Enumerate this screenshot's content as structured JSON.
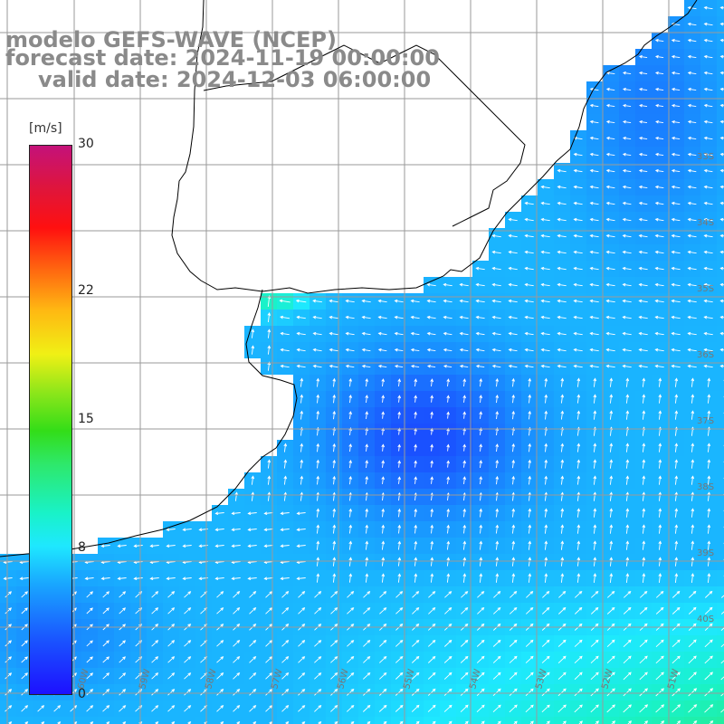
{
  "title": {
    "model": "modelo GEFS-WAVE (NCEP)",
    "forecast": "forecast date: 2024-11-19 00:00:00",
    "valid": "valid date: 2024-12-03 06:00:00"
  },
  "colorbar": {
    "unit": "[m/s]",
    "ticks": [
      {
        "label": "30",
        "value": 30
      },
      {
        "label": "22",
        "value": 22
      },
      {
        "label": "15",
        "value": 15
      },
      {
        "label": "8",
        "value": 8
      },
      {
        "label": "0",
        "value": 0
      }
    ],
    "range": [
      0,
      30
    ]
  },
  "map": {
    "field": "wind speed with direction arrows",
    "lat_labels": [
      "33S",
      "34S",
      "35S",
      "36S",
      "37S",
      "38S",
      "39S",
      "40S"
    ],
    "lon_labels": [
      "60W",
      "59W",
      "58W",
      "57W",
      "56W",
      "55W",
      "54W",
      "53W",
      "52W",
      "51W"
    ],
    "colors": {
      "land": "#ffffff",
      "grid": "#9a9a9a",
      "coast": "#000000",
      "arrow": "#ffffff",
      "title": "#8a8a8a"
    }
  }
}
